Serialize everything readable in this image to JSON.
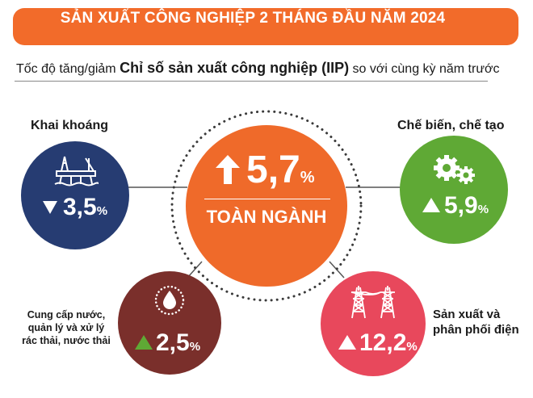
{
  "header": {
    "title": "SẢN XUẤT CÔNG NGHIỆP 2 THÁNG ĐẦU NĂM 2024"
  },
  "subtitle": {
    "prefix": "Tốc độ tăng/giảm ",
    "bold": "Chỉ số sản xuất công nghiệp (IIP)",
    "suffix": " so với cùng kỳ năm trước"
  },
  "center": {
    "value": "5,7",
    "unit": "%",
    "label": "TOÀN NGÀNH",
    "direction": "up",
    "icon": "up-arrow-icon",
    "color": "#ef6a2a"
  },
  "sectors": {
    "mining": {
      "label": "Khai khoáng",
      "value": "3,5",
      "unit": "%",
      "direction": "down",
      "icon": "oil-rig-icon",
      "color": "#263c72"
    },
    "manufacturing": {
      "label": "Chế biến, chế tạo",
      "value": "5,9",
      "unit": "%",
      "direction": "up",
      "icon": "gears-icon",
      "color": "#5fa935"
    },
    "water": {
      "label_lines": [
        "Cung cấp nước,",
        "quản lý và xử lý",
        "rác thải, nước thải"
      ],
      "value": "2,5",
      "unit": "%",
      "direction": "up",
      "icon": "water-drop-icon",
      "color": "#7a2f2b"
    },
    "electricity": {
      "label_lines": [
        "Sản xuất và",
        "phân phối điện"
      ],
      "value": "12,2",
      "unit": "%",
      "direction": "up",
      "icon": "power-tower-icon",
      "color": "#e8485c"
    }
  }
}
